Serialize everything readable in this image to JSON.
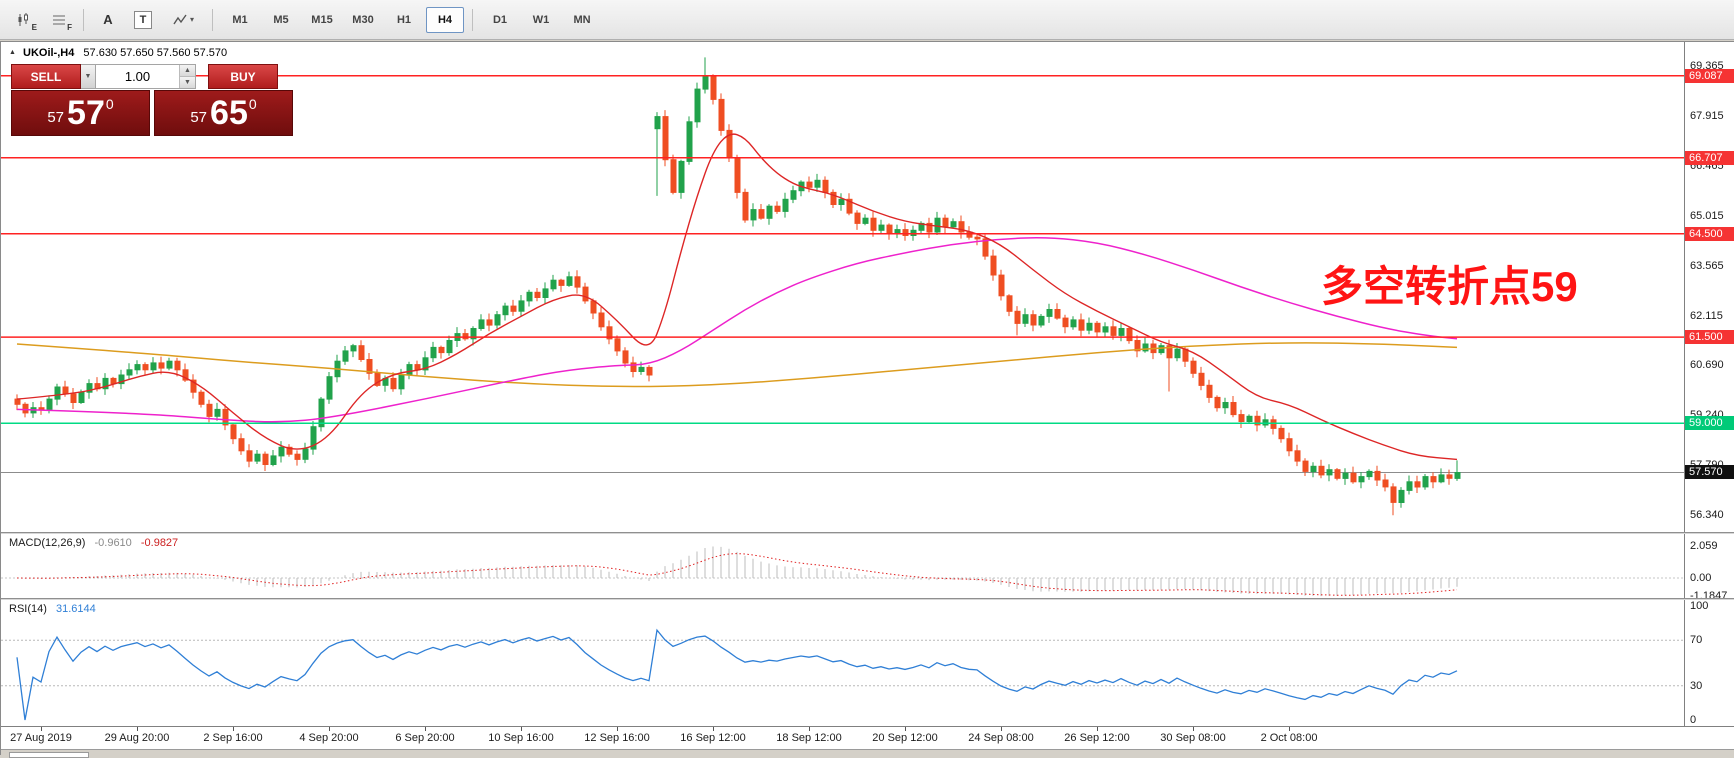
{
  "toolbar": {
    "icons": [
      {
        "name": "candlestick-chart-icon",
        "badge": "E"
      },
      {
        "name": "grid-icon",
        "badge": "F"
      },
      {
        "name": "text-annotation-icon",
        "glyph": "A"
      },
      {
        "name": "template-icon",
        "glyph": "T"
      },
      {
        "name": "indicator-icon",
        "caret": "▾"
      }
    ],
    "timeframes": [
      "M1",
      "M5",
      "M15",
      "M30",
      "H1",
      "H4",
      "D1",
      "W1",
      "MN"
    ],
    "active_timeframe": "H4"
  },
  "window": {
    "title_icon": "▲",
    "title_symbol": "UKOil-,H4",
    "title_ohlc": "57.630 57.650 57.560 57.570"
  },
  "trade_panel": {
    "sell_label": "SELL",
    "buy_label": "BUY",
    "volume": "1.00",
    "bid": {
      "prefix": "57",
      "pips": "57",
      "sup": "0"
    },
    "ask": {
      "prefix": "57",
      "pips": "65",
      "sup": "0"
    }
  },
  "annotation": {
    "text": "多空转折点59",
    "color": "#ff1414"
  },
  "indicators": {
    "macd": {
      "label": "MACD(12,26,9)",
      "value_main": "-0.9610",
      "value_signal": "-0.9827",
      "scale": [
        {
          "label": "2.059",
          "value": 2.059
        },
        {
          "label": "0.00",
          "value": 0
        },
        {
          "label": "-1.1847",
          "value": -1.1847
        }
      ]
    },
    "rsi": {
      "label": "RSI(14)",
      "value": "31.6144",
      "scale": [
        {
          "label": "100",
          "value": 100
        },
        {
          "label": "70",
          "value": 70
        },
        {
          "label": "30",
          "value": 30
        },
        {
          "label": "0",
          "value": 0
        }
      ],
      "levels": [
        70,
        30
      ]
    }
  },
  "price_scale": {
    "ticks": [
      "69.365",
      "67.915",
      "66.465",
      "65.015",
      "63.565",
      "62.115",
      "60.690",
      "59.240",
      "57.790",
      "56.340"
    ],
    "badges": [
      {
        "label": "69.087",
        "price": 69.087,
        "type": "line-red"
      },
      {
        "label": "66.707",
        "price": 66.707,
        "type": "line-red"
      },
      {
        "label": "64.500",
        "price": 64.5,
        "type": "line-red"
      },
      {
        "label": "61.500",
        "price": 61.5,
        "type": "line-red"
      },
      {
        "label": "59.000",
        "price": 59.0,
        "type": "line-green"
      },
      {
        "label": "57.570",
        "price": 57.57,
        "type": "bid"
      }
    ]
  },
  "chart_data": {
    "type": "candlestick",
    "symbol": "UKOil-",
    "timeframe": "H4",
    "title": "UKOil-,H4",
    "y_axis": {
      "top_price": 69.95,
      "bottom_price": 55.9
    },
    "first_open": 59.7,
    "closes": [
      59.55,
      59.3,
      59.45,
      59.4,
      59.7,
      60.05,
      59.85,
      59.6,
      59.9,
      60.15,
      60.0,
      60.3,
      60.15,
      60.4,
      60.55,
      60.7,
      60.55,
      60.75,
      60.6,
      60.8,
      60.55,
      60.25,
      59.9,
      59.55,
      59.2,
      59.4,
      58.95,
      58.55,
      58.2,
      57.9,
      58.1,
      57.8,
      58.05,
      58.3,
      58.1,
      57.95,
      58.25,
      58.9,
      59.7,
      60.35,
      60.8,
      61.1,
      61.25,
      60.85,
      60.45,
      60.1,
      60.3,
      60.0,
      60.4,
      60.7,
      60.55,
      60.9,
      61.2,
      61.05,
      61.4,
      61.6,
      61.45,
      61.75,
      62.0,
      61.85,
      62.15,
      62.4,
      62.25,
      62.55,
      62.8,
      62.65,
      62.9,
      63.15,
      63.0,
      63.25,
      62.95,
      62.55,
      62.2,
      61.8,
      61.45,
      61.1,
      60.75,
      60.5,
      60.62,
      60.4,
      67.9,
      66.65,
      65.7,
      66.6,
      67.75,
      68.7,
      69.05,
      68.4,
      67.5,
      66.7,
      65.7,
      64.9,
      65.2,
      64.95,
      65.3,
      65.15,
      65.5,
      65.75,
      66.0,
      65.85,
      66.05,
      65.7,
      65.35,
      65.5,
      65.1,
      64.8,
      64.95,
      64.6,
      64.75,
      64.5,
      64.62,
      64.45,
      64.6,
      64.8,
      64.55,
      64.95,
      64.7,
      64.85,
      64.55,
      64.4,
      64.35,
      63.85,
      63.3,
      62.7,
      62.25,
      61.9,
      62.15,
      61.85,
      62.1,
      62.3,
      62.05,
      61.8,
      62.0,
      61.7,
      61.9,
      61.65,
      61.8,
      61.55,
      61.75,
      61.4,
      61.1,
      61.3,
      61.05,
      61.25,
      60.9,
      61.15,
      60.8,
      60.45,
      60.1,
      59.75,
      59.45,
      59.6,
      59.25,
      59.05,
      59.2,
      58.95,
      59.1,
      58.85,
      58.55,
      58.2,
      57.9,
      57.6,
      57.75,
      57.5,
      57.65,
      57.4,
      57.55,
      57.3,
      57.45,
      57.6,
      57.35,
      57.15,
      56.7,
      57.05,
      57.3,
      57.15,
      57.45,
      57.3,
      57.5,
      57.4,
      57.57
    ],
    "overrides": {
      "80": {
        "open": 67.55,
        "low": 65.6
      },
      "86": {
        "high": 69.62
      },
      "125": {
        "low": 61.55
      },
      "144": {
        "low": 59.92
      },
      "172": {
        "low": 56.33
      },
      "180": {
        "high": 57.92
      }
    },
    "hlines": [
      {
        "price": 69.087,
        "color": "#ff2222"
      },
      {
        "price": 66.707,
        "color": "#ff2222"
      },
      {
        "price": 64.5,
        "color": "#ff2222"
      },
      {
        "price": 61.5,
        "color": "#ff2222"
      },
      {
        "price": 59.0,
        "color": "#00db84"
      }
    ],
    "bid_line": 57.57,
    "ma_orange": [
      [
        0,
        61.3
      ],
      [
        15,
        61.05
      ],
      [
        27,
        60.8
      ],
      [
        39,
        60.6
      ],
      [
        51,
        60.35
      ],
      [
        63,
        60.15
      ],
      [
        75,
        60.05
      ],
      [
        87,
        60.1
      ],
      [
        99,
        60.3
      ],
      [
        111,
        60.55
      ],
      [
        123,
        60.8
      ],
      [
        135,
        61.05
      ],
      [
        147,
        61.25
      ],
      [
        159,
        61.35
      ],
      [
        171,
        61.3
      ],
      [
        180,
        61.2
      ]
    ],
    "ma_magenta": [
      [
        0,
        59.4
      ],
      [
        15,
        59.3
      ],
      [
        27,
        59.08
      ],
      [
        33,
        59.02
      ],
      [
        39,
        59.15
      ],
      [
        51,
        59.7
      ],
      [
        63,
        60.3
      ],
      [
        69,
        60.55
      ],
      [
        75,
        60.68
      ],
      [
        79,
        60.7
      ],
      [
        83,
        61.1
      ],
      [
        87,
        61.7
      ],
      [
        91,
        62.3
      ],
      [
        95,
        62.8
      ],
      [
        99,
        63.2
      ],
      [
        105,
        63.65
      ],
      [
        111,
        63.95
      ],
      [
        117,
        64.2
      ],
      [
        123,
        64.35
      ],
      [
        129,
        64.4
      ],
      [
        135,
        64.25
      ],
      [
        141,
        63.9
      ],
      [
        147,
        63.45
      ],
      [
        153,
        62.95
      ],
      [
        159,
        62.5
      ],
      [
        165,
        62.1
      ],
      [
        171,
        61.75
      ],
      [
        176,
        61.55
      ],
      [
        180,
        61.45
      ]
    ],
    "ma_red": [
      [
        0,
        59.7
      ],
      [
        7,
        59.85
      ],
      [
        11,
        60.05
      ],
      [
        15,
        60.35
      ],
      [
        19,
        60.55
      ],
      [
        23,
        60.1
      ],
      [
        27,
        59.3
      ],
      [
        31,
        58.55
      ],
      [
        35,
        58.15
      ],
      [
        39,
        58.55
      ],
      [
        43,
        59.9
      ],
      [
        47,
        60.45
      ],
      [
        51,
        60.55
      ],
      [
        55,
        61.0
      ],
      [
        59,
        61.6
      ],
      [
        63,
        62.1
      ],
      [
        67,
        62.6
      ],
      [
        71,
        62.8
      ],
      [
        75,
        62.0
      ],
      [
        79,
        61.0
      ],
      [
        81,
        62.2
      ],
      [
        83,
        64.0
      ],
      [
        85,
        65.6
      ],
      [
        87,
        66.9
      ],
      [
        89,
        67.45
      ],
      [
        91,
        67.3
      ],
      [
        93,
        66.7
      ],
      [
        95,
        66.25
      ],
      [
        97,
        65.95
      ],
      [
        99,
        65.8
      ],
      [
        101,
        65.7
      ],
      [
        103,
        65.55
      ],
      [
        107,
        65.15
      ],
      [
        111,
        64.85
      ],
      [
        115,
        64.72
      ],
      [
        119,
        64.6
      ],
      [
        123,
        64.2
      ],
      [
        127,
        63.45
      ],
      [
        131,
        62.75
      ],
      [
        135,
        62.25
      ],
      [
        139,
        61.8
      ],
      [
        143,
        61.35
      ],
      [
        147,
        61.1
      ],
      [
        151,
        60.45
      ],
      [
        155,
        59.75
      ],
      [
        159,
        59.55
      ],
      [
        163,
        59.1
      ],
      [
        167,
        58.7
      ],
      [
        171,
        58.35
      ],
      [
        175,
        58.05
      ],
      [
        180,
        57.95
      ]
    ],
    "x_labels": [
      {
        "text": "27 Aug 2019",
        "bar": 3
      },
      {
        "text": "29 Aug 20:00",
        "bar": 15
      },
      {
        "text": "2 Sep 16:00",
        "bar": 27
      },
      {
        "text": "4 Sep 20:00",
        "bar": 39
      },
      {
        "text": "6 Sep 20:00",
        "bar": 51
      },
      {
        "text": "10 Sep 16:00",
        "bar": 63
      },
      {
        "text": "12 Sep 16:00",
        "bar": 75
      },
      {
        "text": "16 Sep 12:00",
        "bar": 87
      },
      {
        "text": "18 Sep 12:00",
        "bar": 99
      },
      {
        "text": "20 Sep 12:00",
        "bar": 111
      },
      {
        "text": "24 Sep 08:00",
        "bar": 123
      },
      {
        "text": "26 Sep 12:00",
        "bar": 135
      },
      {
        "text": "30 Sep 08:00",
        "bar": 147
      },
      {
        "text": "2 Oct 08:00",
        "bar": 159
      }
    ],
    "colors": {
      "up": "#21a24b",
      "down": "#ef4e22",
      "ma_orange": "#dc9c1e",
      "ma_magenta": "#ee22cc",
      "ma_fast": "#dd2626",
      "macd_hist": "#bdbdbd",
      "macd_signal": "#e02020",
      "rsi": "#2f7fd6",
      "bid_line": "#8c8c8c"
    }
  }
}
